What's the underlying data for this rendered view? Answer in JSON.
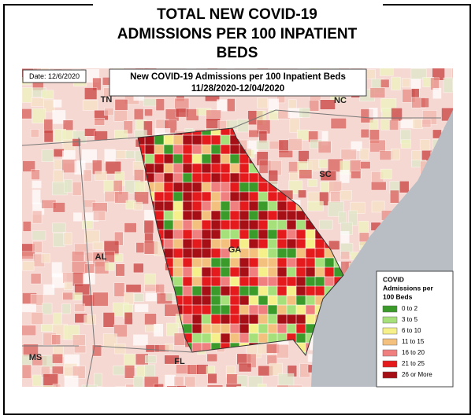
{
  "header": {
    "title_lines": [
      "TOTAL NEW COVID-19",
      "ADMISSIONS PER 100 INPATIENT",
      "BEDS"
    ]
  },
  "map": {
    "date": "Date: 12/6/2020",
    "title": "New COVID-19 Admissions per 100 Inpatient Beds",
    "period": "11/28/2020-12/04/2020",
    "state_labels": [
      "TN",
      "NC",
      "SC",
      "AL",
      "GA",
      "MS",
      "FL"
    ],
    "legend": {
      "title_lines": [
        "COVID",
        "Admissions per",
        "100 Beds"
      ],
      "items": [
        {
          "label": "0 to 2",
          "color": "#3a9a2a"
        },
        {
          "label": "3 to 5",
          "color": "#a6e07a"
        },
        {
          "label": "6 to 10",
          "color": "#f5f08a"
        },
        {
          "label": "11 to 15",
          "color": "#f4c07e"
        },
        {
          "label": "16 to 20",
          "color": "#f08080"
        },
        {
          "label": "21 to 25",
          "color": "#e41a1c"
        },
        {
          "label": "26 or More",
          "color": "#a50f15"
        }
      ]
    }
  }
}
